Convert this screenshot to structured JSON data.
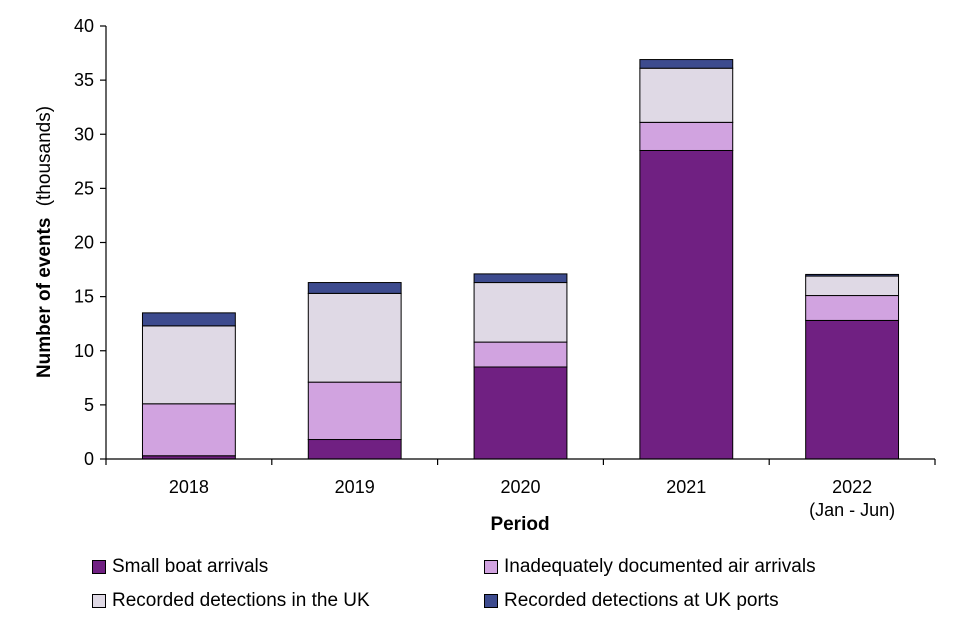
{
  "chart_data": {
    "type": "bar",
    "stacked": true,
    "title": "",
    "xlabel": "Period",
    "ylabel_bold": "Number of events",
    "ylabel_suffix": "(thousands)",
    "ylim": [
      0,
      40
    ],
    "yticks": [
      "0",
      "5",
      "10",
      "15",
      "20",
      "25",
      "30",
      "35",
      "40"
    ],
    "categories": [
      {
        "line1": "2018",
        "line2": ""
      },
      {
        "line1": "2019",
        "line2": ""
      },
      {
        "line1": "2020",
        "line2": ""
      },
      {
        "line1": "2021",
        "line2": ""
      },
      {
        "line1": "2022",
        "line2": "(Jan - Jun)"
      }
    ],
    "series": [
      {
        "name": "Small boat arrivals",
        "color": "#702082",
        "values": [
          0.3,
          1.8,
          8.5,
          28.5,
          12.8
        ]
      },
      {
        "name": "Inadequately documented air arrivals",
        "color": "#d1a3e0",
        "values": [
          4.8,
          5.3,
          2.3,
          2.6,
          2.3
        ]
      },
      {
        "name": "Recorded detections in the UK",
        "color": "#dfd9e5",
        "values": [
          7.2,
          8.2,
          5.5,
          5.0,
          1.8
        ]
      },
      {
        "name": "Recorded detections at UK ports",
        "color": "#3d4b8e",
        "values": [
          1.2,
          1.0,
          0.8,
          0.8,
          0.15
        ]
      }
    ],
    "legend_position": "bottom"
  }
}
